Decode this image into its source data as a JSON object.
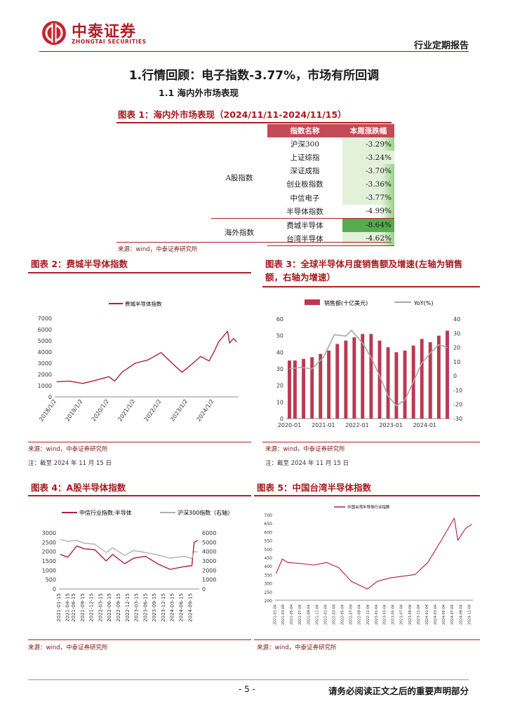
{
  "header": {
    "company_cn": "中泰证券",
    "company_en": "ZHONGTAI SECURITIES",
    "report_type": "行业定期报告"
  },
  "section": {
    "title": "1.行情回顾：电子指数-3.77%，市场有所回调",
    "subtitle": "1.1  海内外市场表现"
  },
  "fig1": {
    "title": "图表 1：海内外市场表现（2024/11/11-2024/11/15）",
    "header": {
      "name": "指数名称",
      "change": "本周涨跌幅"
    },
    "groups": [
      {
        "label": "A股指数",
        "rows": [
          {
            "name": "沪深300",
            "change": "-3.29%"
          },
          {
            "name": "上证综指",
            "change": "-3.24%"
          },
          {
            "name": "深证成指",
            "change": "-3.70%"
          },
          {
            "name": "创业板指数",
            "change": "-3.36%"
          },
          {
            "name": "中信电子",
            "change": "-3.77%"
          },
          {
            "name": "半导体指数",
            "change": "-4.99%"
          }
        ]
      },
      {
        "label": "海外指数",
        "rows": [
          {
            "name": "费城半导体",
            "change": "-8.64%"
          },
          {
            "name": "台湾半导体",
            "change": "-4.62%"
          }
        ]
      }
    ],
    "colors": {
      "header_bg": "#c34a58",
      "best": "#e3f1db",
      "worst": "#57aa4d",
      "mid": "#9bcf8a"
    },
    "source": "来源：wind，中泰证券研究所"
  },
  "fig2": {
    "title": "图表 2：费城半导体指数",
    "source": "来源：wind，中泰证券研究所",
    "note": "注：截至 2024 年 11 月 15 日"
  },
  "fig3": {
    "title_line1": "图表 3：全球半导体月度销售额及增速(左轴为销售",
    "title_line2": "额，右轴为增速）",
    "source": "来源：wind，中泰证券研究所",
    "note": "注：截至 2024 年 11 月 15 日"
  },
  "fig4": {
    "title": "图表 4：A股半导体指数",
    "source": "来源：wind，中泰证券研究所"
  },
  "fig5": {
    "title": "图表 5：中国台湾半导体指数",
    "source": "来源：wind，中泰证券研究所"
  },
  "footer": {
    "page": "- 5 -",
    "disclaimer": "请务必阅读正文之后的重要声明部分"
  },
  "chart_data": [
    {
      "id": "fig2",
      "type": "line",
      "series": [
        {
          "name": "费城半导体指数",
          "color": "#b01e3a",
          "x": [
            "2018/1/2",
            "2018/7/2",
            "2019/1/2",
            "2019/7/2",
            "2020/1/2",
            "2020/3/20",
            "2020/7/2",
            "2021/1/2",
            "2021/7/2",
            "2021/12/27",
            "2022/7/2",
            "2022/10/14",
            "2023/1/2",
            "2023/7/2",
            "2023/10/27",
            "2024/1/2",
            "2024/3/8",
            "2024/7/10",
            "2024/8/7",
            "2024/10/1",
            "2024/11/15"
          ],
          "values": [
            1350,
            1400,
            1200,
            1480,
            1800,
            1400,
            2200,
            3000,
            3300,
            3950,
            2800,
            2200,
            2600,
            3600,
            3200,
            4000,
            4900,
            5850,
            4800,
            5200,
            4900
          ]
        }
      ],
      "xticks": [
        "2018/1/2",
        "2019/1/2",
        "2020/1/2",
        "2021/1/2",
        "2022/1/2",
        "2023/1/2",
        "2024/1/2"
      ],
      "ylim": [
        0,
        7000
      ],
      "yticks": [
        0,
        1000,
        2000,
        3000,
        4000,
        5000,
        6000,
        7000
      ]
    },
    {
      "id": "fig3",
      "type": "bar",
      "series": [
        {
          "name": "销售额(十亿美元)",
          "axis": "left",
          "color": "#b83a52",
          "x": [
            "2020-01",
            "2020-03",
            "2020-06",
            "2020-09",
            "2020-12",
            "2021-03",
            "2021-06",
            "2021-09",
            "2021-12",
            "2022-03",
            "2022-06",
            "2022-09",
            "2022-12",
            "2023-03",
            "2023-06",
            "2023-09",
            "2023-12",
            "2024-03",
            "2024-06",
            "2024-09"
          ],
          "values": [
            35,
            35,
            36,
            37,
            39,
            41,
            45,
            47,
            49,
            51,
            51,
            47,
            43,
            40,
            41,
            44,
            48,
            46,
            50,
            53
          ]
        },
        {
          "name": "YoY(%)",
          "axis": "right",
          "color": "#a8a8a8",
          "x": [
            "2020-01",
            "2020-05",
            "2020-09",
            "2021-01",
            "2021-05",
            "2021-09",
            "2021-11",
            "2022-03",
            "2022-06",
            "2022-09",
            "2022-12",
            "2023-03",
            "2023-06",
            "2023-09",
            "2023-12",
            "2024-03",
            "2024-06",
            "2024-09"
          ],
          "values": [
            5,
            6,
            5,
            13,
            29,
            28,
            32,
            23,
            13,
            0,
            -14,
            -21,
            -17,
            -4,
            9,
            16,
            22,
            20
          ]
        }
      ],
      "xticks": [
        "2020-01",
        "2021-01",
        "2022-01",
        "2023-01",
        "2024-01"
      ],
      "ylim": [
        0,
        60
      ],
      "yticks": [
        0,
        10,
        20,
        30,
        40,
        50,
        60
      ],
      "y2lim": [
        -30,
        40
      ],
      "y2ticks": [
        -30,
        -20,
        -10,
        0,
        10,
        20,
        30,
        40
      ]
    },
    {
      "id": "fig4",
      "type": "line",
      "series": [
        {
          "name": "中信行业指数:半导体",
          "axis": "left",
          "color": "#b01e3a",
          "x": [
            "2021-01-15",
            "2021-04-01",
            "2021-07-01",
            "2021-09-15",
            "2022-01-01",
            "2022-04-26",
            "2022-07-01",
            "2022-10-31",
            "2023-02-01",
            "2023-06-01",
            "2023-10-01",
            "2024-02-05",
            "2024-07-01",
            "2024-09-15",
            "2024-10-08",
            "2024-11-15"
          ],
          "values": [
            1850,
            1700,
            2300,
            2150,
            2100,
            1500,
            1850,
            1350,
            1650,
            1750,
            1350,
            1050,
            1200,
            1250,
            2500,
            2600
          ]
        },
        {
          "name": "沪深300指数（右轴）",
          "axis": "right",
          "color": "#b0b0b0",
          "x": [
            "2021-01-15",
            "2021-04-01",
            "2021-07-01",
            "2021-09-15",
            "2022-01-01",
            "2022-04-26",
            "2022-07-01",
            "2022-10-31",
            "2023-02-01",
            "2023-06-01",
            "2023-10-01",
            "2024-02-05",
            "2024-07-01",
            "2024-09-15",
            "2024-10-08",
            "2024-11-15"
          ],
          "values": [
            5300,
            5100,
            5200,
            4900,
            4800,
            3900,
            4400,
            3600,
            4100,
            3900,
            3650,
            3300,
            3500,
            3250,
            4000,
            3950
          ]
        }
      ],
      "xticks": [
        "2021-01-15",
        "2021-04-15",
        "2021-06-15",
        "2021-09-15",
        "2021-12-15",
        "2022-03-15",
        "2022-06-15",
        "2022-09-15",
        "2022-12-15",
        "2023-03-15",
        "2023-06-15",
        "2023-09-15",
        "2023-12-15",
        "2024-03-15",
        "2024-06-15",
        "2024-09-15"
      ],
      "ylim": [
        0,
        3000
      ],
      "yticks": [
        0,
        500,
        1000,
        1500,
        2000,
        2500,
        3000
      ],
      "y2lim": [
        0,
        6000
      ],
      "y2ticks": [
        0,
        1000,
        2000,
        3000,
        4000,
        5000,
        6000
      ]
    },
    {
      "id": "fig5",
      "type": "line",
      "series": [
        {
          "name": "中国台湾半导体行业指数",
          "color": "#b01e3a",
          "x": [
            "2021-01-04",
            "2021-02-18",
            "2021-04-01",
            "2021-07-01",
            "2021-10-01",
            "2022-01-03",
            "2022-04-01",
            "2022-07-01",
            "2022-10-25",
            "2023-01-03",
            "2023-04-03",
            "2023-07-03",
            "2023-10-02",
            "2024-01-02",
            "2024-04-01",
            "2024-07-11",
            "2024-08-05",
            "2024-10-01",
            "2024-11-15"
          ],
          "values": [
            355,
            440,
            420,
            415,
            405,
            420,
            390,
            310,
            265,
            310,
            330,
            340,
            350,
            420,
            540,
            680,
            550,
            620,
            645
          ]
        }
      ],
      "xticks": [
        "2021-01-04",
        "2021-03-04",
        "2021-05-04",
        "2021-07-04",
        "2021-09-04",
        "2021-11-04",
        "2022-01-04",
        "2022-03-04",
        "2022-05-04",
        "2022-07-04",
        "2022-09-04",
        "2022-11-04",
        "2023-01-04",
        "2023-03-04",
        "2023-05-04",
        "2023-07-04",
        "2023-09-04",
        "2023-11-04",
        "2024-01-04",
        "2024-03-04",
        "2024-05-04",
        "2024-07-04",
        "2024-09-04",
        "2024-11-04"
      ],
      "ylim": [
        200,
        700
      ],
      "yticks": [
        200,
        250,
        300,
        350,
        400,
        450,
        500,
        550,
        600,
        650,
        700
      ]
    }
  ]
}
